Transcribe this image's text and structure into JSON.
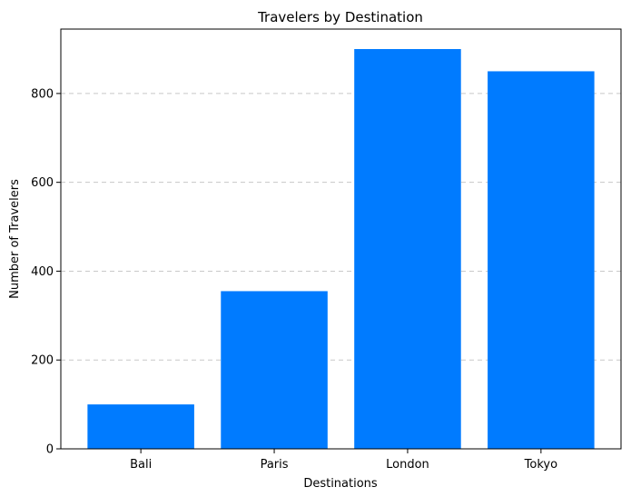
{
  "chart_data": {
    "type": "bar",
    "title": "Travelers by Destination",
    "xlabel": "Destinations",
    "ylabel": "Number of Travelers",
    "categories": [
      "Bali",
      "Paris",
      "London",
      "Tokyo"
    ],
    "values": [
      100,
      355,
      900,
      850
    ],
    "ylim": [
      0,
      945
    ],
    "yticks": [
      0,
      200,
      400,
      600,
      800
    ],
    "grid": "y-dashed",
    "bar_color": "#007bff",
    "grid_color": "#c8c8c8"
  }
}
